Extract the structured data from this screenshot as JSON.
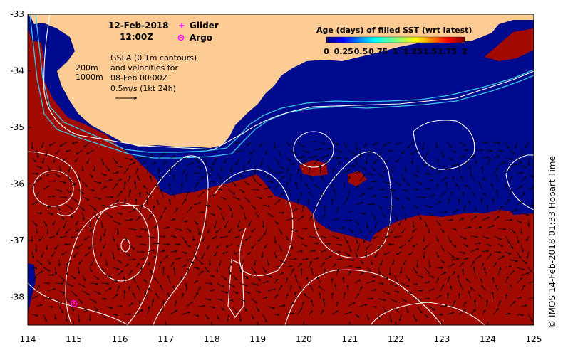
{
  "map": {
    "date": "12-Feb-2018",
    "time": "12:00Z",
    "legend": {
      "glider_label": "Glider",
      "argo_label": "Argo",
      "glider_symbol": "+",
      "argo_symbol": "o"
    },
    "gsla_note": {
      "line1": "GSLA (0.1m contours)",
      "line2": "and velocities for",
      "line3": "08-Feb 00:00Z",
      "line4": "0.5m/s (1kt 24h)"
    },
    "isobaths": {
      "shallow": "200m",
      "deep": "1000m"
    },
    "colorbar": {
      "title": "Age (days) of filled SST (wrt latest)",
      "tick_labels": [
        "0",
        "0.25",
        "0.5",
        "0.75",
        "1",
        "1.25",
        "1.5",
        "1.75",
        "2"
      ],
      "min": 0,
      "max": 2
    },
    "credit": "IMOS 14-Feb-2018 01:33 Hobart Time",
    "credit_symbol": "©",
    "x_axis": {
      "ticks": [
        "114",
        "115",
        "116",
        "117",
        "118",
        "119",
        "120",
        "121",
        "122",
        "123",
        "124",
        "125"
      ],
      "min": 114,
      "max": 125
    },
    "y_axis": {
      "ticks": [
        "-33",
        "-34",
        "-35",
        "-36",
        "-37",
        "-38"
      ],
      "min": -38.5,
      "max": -33
    },
    "argo_float": {
      "lon": 115.0,
      "lat": -38.12
    },
    "colors": {
      "land": "#fdcc94",
      "recent": "#000a8c",
      "old": "#a00a00",
      "contour": "#ffffff",
      "isobath": "#3ac8e8",
      "argo": "#ff00ff"
    }
  }
}
